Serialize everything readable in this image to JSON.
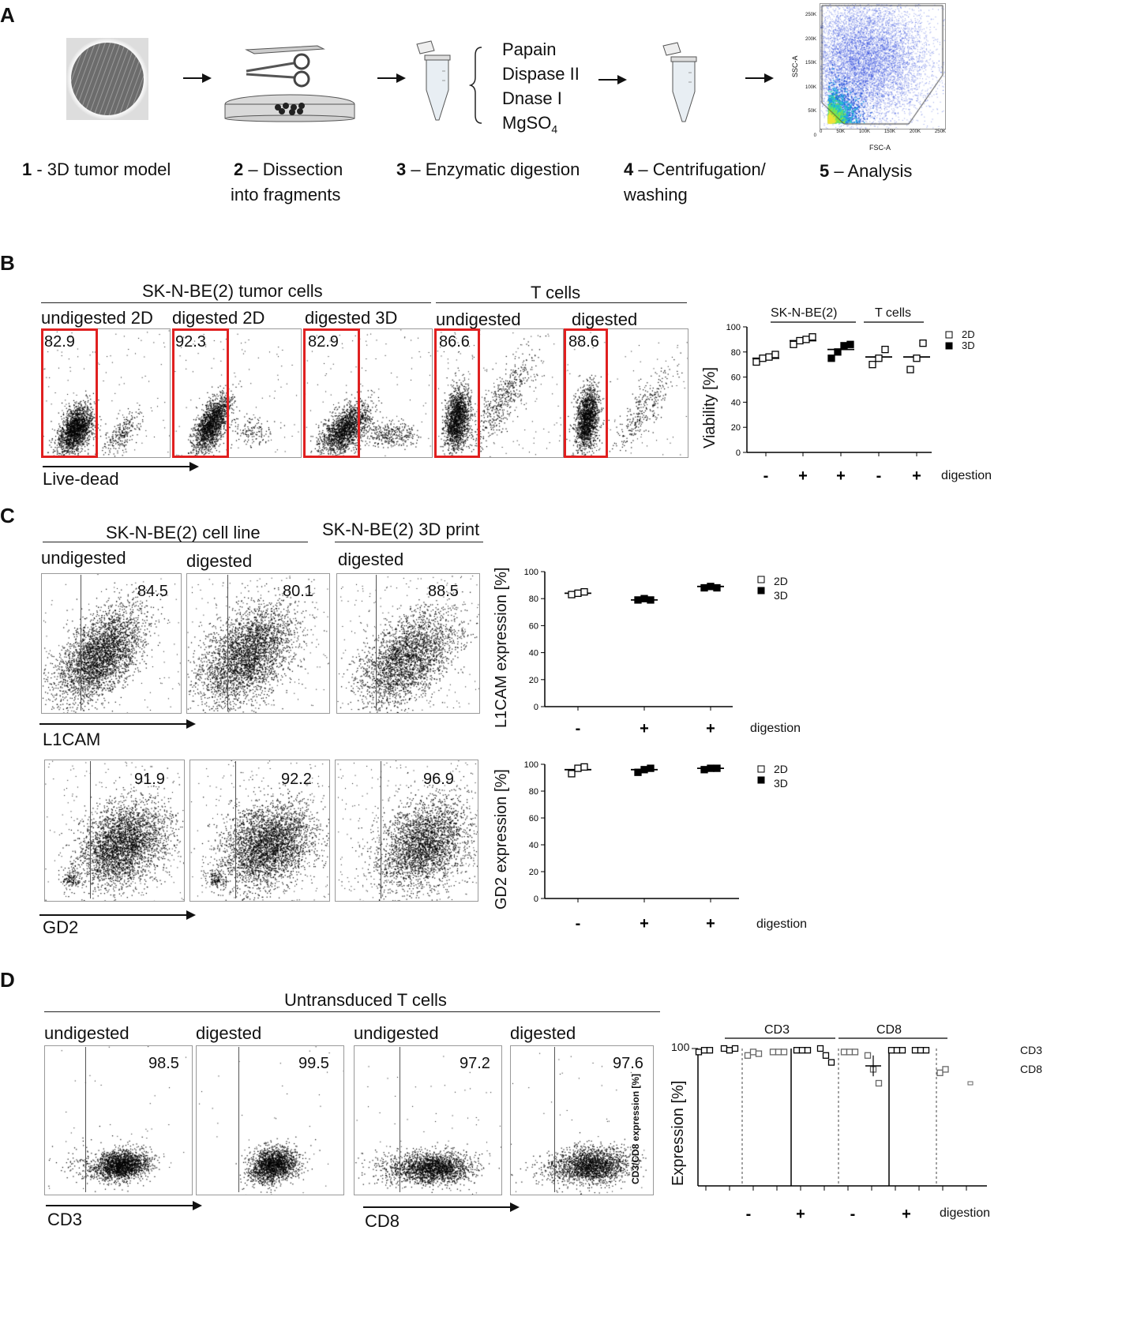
{
  "panel_A": {
    "letter": "A",
    "reagents": [
      "Papain",
      "Dispase II",
      "Dnase I",
      "MgSO",
      "4"
    ],
    "steps": [
      {
        "num": "1",
        "text": " - 3D tumor model"
      },
      {
        "num": "2",
        "text": " – Dissection",
        "text2": "into fragments"
      },
      {
        "num": "3",
        "text": " – Enzymatic digestion"
      },
      {
        "num": "4",
        "text": " – Centrifugation/",
        "text2": "washing"
      },
      {
        "num": "5",
        "text": " – Analysis"
      }
    ],
    "mini_plot": {
      "ylabel": "SSC-A",
      "xlabel": "FSC-A",
      "yticks": [
        "250K",
        "200K",
        "150K",
        "100K",
        "50K",
        "0"
      ],
      "xticks": [
        "0",
        "50K",
        "100K",
        "150K",
        "200K",
        "250K"
      ]
    }
  },
  "panel_B": {
    "letter": "B",
    "group_tumor": "SK-N-BE(2) tumor cells",
    "group_tcells": "T cells",
    "plots": [
      {
        "label": "undigested 2D",
        "value": "82.9"
      },
      {
        "label": "digested 2D",
        "value": "92.3"
      },
      {
        "label": "digested 3D",
        "value": "82.9"
      },
      {
        "label": "undigested",
        "value": "86.6"
      },
      {
        "label": "digested",
        "value": "88.6"
      }
    ],
    "xaxis": "Live-dead",
    "chart": {
      "ylabel": "Viability [%]",
      "group1": "SK-N-BE(2)",
      "group2": "T cells",
      "yticks": [
        "100",
        "80",
        "60",
        "40",
        "20",
        "0"
      ],
      "digestion_signs": [
        "-",
        "+",
        "+",
        "-",
        "+"
      ],
      "digestion_label": "digestion",
      "legend": [
        "2D",
        "3D"
      ]
    }
  },
  "panel_C": {
    "letter": "C",
    "group_cellline": "SK-N-BE(2) cell line",
    "group_3d": "SK-N-BE(2) 3D print",
    "col_labels": [
      "undigested",
      "digested",
      "digested"
    ],
    "row1": {
      "values": [
        "84.5",
        "80.1",
        "88.5"
      ],
      "axis": "L1CAM"
    },
    "row2": {
      "values": [
        "91.9",
        "92.2",
        "96.9"
      ],
      "axis": "GD2"
    },
    "chart1": {
      "ylabel": "L1CAM expression [%]",
      "yticks": [
        "100",
        "80",
        "60",
        "40",
        "20",
        "0"
      ],
      "digestion_signs": [
        "-",
        "+",
        "+"
      ],
      "digestion_label": "digestion",
      "legend": [
        "2D",
        "3D"
      ]
    },
    "chart2": {
      "ylabel": "GD2 expression [%]",
      "yticks": [
        "100",
        "80",
        "60",
        "40",
        "20",
        "0"
      ],
      "digestion_signs": [
        "-",
        "+",
        "+"
      ],
      "digestion_label": "digestion",
      "legend": [
        "2D",
        "3D"
      ]
    }
  },
  "panel_D": {
    "letter": "D",
    "group": "Untransduced T cells",
    "plots": [
      {
        "label": "undigested",
        "value": "98.5"
      },
      {
        "label": "digested",
        "value": "99.5"
      },
      {
        "label": "undigested",
        "value": "97.2"
      },
      {
        "label": "digested",
        "value": "97.6"
      }
    ],
    "axis_cd3": "CD3",
    "axis_cd8": "CD8",
    "overlap_label": "CD3/CD8 expression [%]",
    "chart": {
      "ylabel": "Expression [%]",
      "ytick": "100",
      "group1": "CD3",
      "group2": "CD8",
      "digestion_signs": [
        "-",
        "+",
        "-",
        "+"
      ],
      "digestion_label": "digestion",
      "legend": [
        "CD3",
        "CD8"
      ]
    }
  },
  "chart_data": [
    {
      "type": "scatter",
      "title": "",
      "ylabel": "Viability [%]",
      "ylim": [
        0,
        100
      ],
      "categories": [
        "SK-N-BE(2) -",
        "SK-N-BE(2) +",
        "SK-N-BE(2) +",
        "T cells -",
        "T cells +"
      ],
      "series": [
        {
          "name": "2D",
          "groups": [
            [
              72,
              75,
              76,
              78
            ],
            [
              86,
              89,
              90,
              92
            ],
            [],
            [
              70,
              75,
              82
            ],
            [
              66,
              75,
              87
            ]
          ]
        },
        {
          "name": "3D",
          "groups": [
            [],
            [],
            [
              75,
              80,
              85,
              86
            ],
            [],
            []
          ]
        }
      ],
      "means": [
        75,
        89,
        82,
        76,
        76
      ]
    },
    {
      "type": "scatter",
      "ylabel": "L1CAM expression [%]",
      "ylim": [
        0,
        100
      ],
      "categories": [
        "-",
        "+",
        "+"
      ],
      "series": [
        {
          "name": "2D",
          "groups": [
            [
              83,
              84,
              85
            ],
            [],
            []
          ]
        },
        {
          "name": "3D",
          "groups": [
            [],
            [
              79,
              80,
              79
            ],
            [
              88,
              89,
              88
            ]
          ]
        }
      ],
      "means": [
        84,
        79,
        89
      ]
    },
    {
      "type": "scatter",
      "ylabel": "GD2 expression [%]",
      "ylim": [
        0,
        100
      ],
      "categories": [
        "-",
        "+",
        "+"
      ],
      "series": [
        {
          "name": "2D",
          "groups": [
            [
              93,
              97,
              98
            ],
            [],
            []
          ]
        },
        {
          "name": "3D",
          "groups": [
            [],
            [
              94,
              96,
              97
            ],
            [
              96,
              97,
              97
            ]
          ]
        }
      ],
      "means": [
        96,
        96,
        97
      ]
    }
  ]
}
